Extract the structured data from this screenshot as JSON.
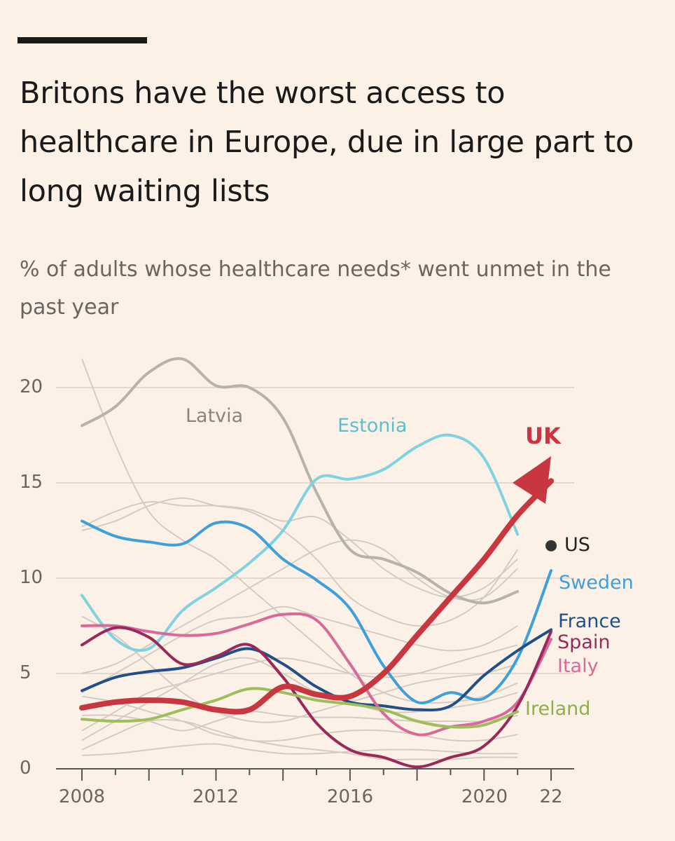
{
  "title": "Britons have the worst access to healthcare in Europe, due in large part to long waiting lists",
  "subtitle": "% of adults whose healthcare needs* went unmet in the past year",
  "chart_data": {
    "type": "line",
    "x": [
      2008,
      2009,
      2010,
      2011,
      2012,
      2013,
      2014,
      2015,
      2016,
      2017,
      2018,
      2019,
      2020,
      2021,
      2022
    ],
    "ylim": [
      0,
      21.5
    ],
    "xlim": [
      2008,
      2022
    ],
    "yticks": [
      "0",
      "5",
      "10",
      "15",
      "20"
    ],
    "xticks": [
      "2008",
      "2012",
      "2016",
      "2020",
      "22"
    ],
    "grid": true,
    "series": [
      {
        "name": "Latvia",
        "color": "#b8b2ac",
        "width": 4,
        "values": [
          18.0,
          19.0,
          20.8,
          21.5,
          20.1,
          20.0,
          18.4,
          14.5,
          11.5,
          11.0,
          10.3,
          9.2,
          8.7,
          9.3,
          null
        ]
      },
      {
        "name": "Estonia",
        "color": "#7fd3e0",
        "width": 4,
        "values": [
          9.1,
          6.8,
          6.3,
          8.3,
          9.5,
          10.8,
          12.5,
          15.2,
          15.2,
          15.7,
          16.9,
          17.5,
          16.3,
          12.3,
          null
        ]
      },
      {
        "name": "Sweden",
        "color": "#3f9fdc",
        "width": 4,
        "values": [
          13.0,
          12.2,
          11.9,
          11.8,
          12.9,
          12.6,
          11.0,
          9.9,
          8.4,
          5.4,
          3.5,
          4.0,
          3.7,
          5.8,
          10.4
        ]
      },
      {
        "name": "France",
        "color": "#214f87",
        "width": 4,
        "values": [
          4.1,
          4.8,
          5.1,
          5.3,
          5.8,
          6.3,
          5.5,
          4.3,
          3.5,
          3.3,
          3.1,
          3.3,
          4.9,
          6.2,
          7.3
        ]
      },
      {
        "name": "Italy",
        "color": "#d9699b",
        "width": 4,
        "values": [
          7.5,
          7.5,
          7.2,
          7.0,
          7.1,
          7.6,
          8.1,
          7.8,
          5.5,
          2.9,
          1.8,
          2.2,
          2.5,
          3.5,
          6.8
        ]
      },
      {
        "name": "Spain",
        "color": "#9a2859",
        "width": 4,
        "values": [
          6.5,
          7.4,
          6.9,
          5.5,
          5.9,
          6.5,
          4.8,
          2.4,
          1.0,
          0.6,
          0.1,
          0.6,
          1.2,
          3.3,
          7.2
        ]
      },
      {
        "name": "Ireland",
        "color": "#9dbe5a",
        "width": 4,
        "values": [
          2.6,
          2.5,
          2.6,
          3.1,
          3.6,
          4.2,
          4.0,
          3.6,
          3.4,
          3.1,
          2.5,
          2.2,
          2.3,
          3.0,
          null
        ]
      },
      {
        "name": "UK",
        "color": "#c8363f",
        "width": 8,
        "arrow": true,
        "values": [
          3.2,
          3.5,
          3.6,
          3.5,
          3.1,
          3.1,
          4.3,
          3.9,
          3.8,
          5.0,
          7.0,
          9.0,
          11.0,
          13.3,
          16.4
        ]
      },
      {
        "name": "US",
        "color": "#333333",
        "point": true,
        "values": [
          null,
          null,
          null,
          null,
          null,
          null,
          null,
          null,
          null,
          null,
          null,
          null,
          null,
          null,
          11.7
        ]
      }
    ],
    "background_series": [
      [
        21.5,
        17.0,
        13.5,
        12.0,
        11.0,
        9.5,
        8.0,
        6.5,
        5.0,
        4.0,
        3.5,
        3.5,
        3.8,
        4.5,
        null
      ],
      [
        12.5,
        13.0,
        13.8,
        14.2,
        13.8,
        13.5,
        12.5,
        11.0,
        9.0,
        8.0,
        7.5,
        7.8,
        9.0,
        11.5,
        null
      ],
      [
        12.7,
        13.5,
        14.0,
        13.8,
        13.8,
        13.6,
        13.0,
        13.2,
        12.0,
        10.5,
        9.5,
        9.0,
        9.5,
        11.0,
        null
      ],
      [
        5.0,
        5.5,
        6.5,
        7.5,
        8.5,
        9.5,
        10.5,
        11.5,
        12.0,
        11.5,
        10.0,
        9.0,
        9.0,
        10.5,
        null
      ],
      [
        4.0,
        5.0,
        6.0,
        7.0,
        7.8,
        8.0,
        8.5,
        8.0,
        7.5,
        7.0,
        6.5,
        6.2,
        6.5,
        7.5,
        null
      ],
      [
        2.0,
        3.0,
        4.0,
        4.5,
        5.0,
        5.5,
        5.8,
        5.5,
        5.0,
        4.8,
        5.0,
        5.5,
        6.0,
        6.5,
        null
      ],
      [
        1.5,
        2.5,
        3.5,
        4.5,
        5.5,
        5.8,
        5.0,
        4.0,
        3.5,
        3.0,
        3.0,
        3.2,
        3.5,
        4.0,
        null
      ],
      [
        2.8,
        2.8,
        2.5,
        2.0,
        2.5,
        3.0,
        2.8,
        2.7,
        2.7,
        2.6,
        2.5,
        2.5,
        2.5,
        2.8,
        null
      ],
      [
        1.0,
        1.8,
        2.5,
        2.5,
        2.0,
        1.5,
        1.5,
        1.8,
        2.0,
        2.0,
        1.8,
        1.5,
        1.5,
        1.8,
        null
      ],
      [
        0.7,
        0.8,
        1.0,
        1.2,
        1.3,
        1.0,
        0.8,
        0.8,
        0.9,
        1.0,
        1.0,
        0.9,
        0.8,
        0.8,
        null
      ],
      [
        3.8,
        3.5,
        3.0,
        2.5,
        1.8,
        1.5,
        1.2,
        1.0,
        0.8,
        0.5,
        0.5,
        0.5,
        0.6,
        0.6,
        null
      ],
      [
        8.0,
        7.0,
        5.5,
        4.0,
        3.0,
        2.5,
        2.5,
        3.0,
        3.5,
        4.0,
        4.5,
        4.8,
        5.0,
        5.5,
        null
      ]
    ],
    "us_label": "US"
  }
}
